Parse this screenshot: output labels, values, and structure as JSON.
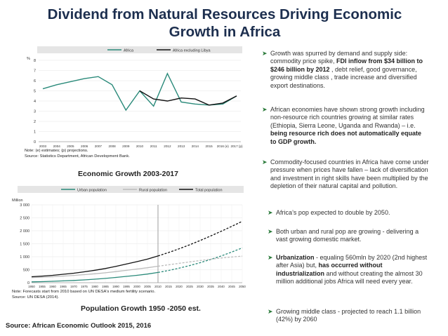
{
  "title": {
    "line1": "Dividend from Natural Resources Driving Economic",
    "line2": "Growth in Africa"
  },
  "chart_data": [
    {
      "type": "line",
      "title": "Economic Growth 2003-2017",
      "ylabel": "%",
      "ylim": [
        0,
        8
      ],
      "yticks": [
        "0",
        "1",
        "2",
        "3",
        "4",
        "5",
        "6",
        "7",
        "8"
      ],
      "categories": [
        "2003",
        "2004",
        "2005",
        "2006",
        "2007",
        "2008",
        "2009",
        "2010",
        "2011",
        "2012",
        "2013",
        "2014",
        "2015",
        "2016 (e)",
        "2017 (p)"
      ],
      "series": [
        {
          "name": "Africa",
          "values": [
            5.2,
            5.6,
            5.9,
            6.2,
            6.4,
            5.6,
            3.1,
            5.0,
            3.5,
            6.7,
            3.9,
            3.7,
            3.6,
            3.7,
            4.5
          ],
          "color": "#2a8a7a"
        },
        {
          "name": "Africa excluding Libya",
          "values": [
            null,
            null,
            null,
            null,
            null,
            null,
            null,
            5.0,
            4.2,
            4.0,
            4.3,
            4.2,
            3.6,
            3.8,
            4.5
          ],
          "color": "#111111"
        }
      ],
      "notes": [
        "Note: (e) estimates; (p) projections.",
        "Source: Statistics Department, African Development Bank."
      ]
    },
    {
      "type": "line",
      "title": "Population Growth 1950 -2050 est.",
      "ylabel": "Million",
      "ylim": [
        0,
        3000
      ],
      "yticks": [
        "0",
        "500",
        "1 000",
        "1 500",
        "2 000",
        "2 500",
        "3 000"
      ],
      "categories": [
        "1950",
        "1955",
        "1960",
        "1965",
        "1970",
        "1975",
        "1980",
        "1985",
        "1990",
        "1995",
        "2000",
        "2005",
        "2010",
        "2015",
        "2020",
        "2025",
        "2030",
        "2035",
        "2040",
        "2045",
        "2050"
      ],
      "series": [
        {
          "name": "Urban population",
          "values": [
            33,
            41,
            53,
            69,
            86,
            107,
            134,
            166,
            203,
            243,
            285,
            332,
            395,
            471,
            560,
            660,
            770,
            895,
            1030,
            1180,
            1340
          ],
          "color": "#2a8a7a",
          "style": "solid"
        },
        {
          "name": "Rural population",
          "values": [
            196,
            214,
            230,
            255,
            280,
            312,
            344,
            381,
            427,
            475,
            526,
            577,
            635,
            690,
            745,
            800,
            855,
            905,
            950,
            990,
            1025
          ],
          "color": "#bbbbbb",
          "style": "solid"
        },
        {
          "name": "Total population",
          "values": [
            229,
            255,
            283,
            324,
            366,
            419,
            478,
            547,
            630,
            718,
            811,
            909,
            1030,
            1161,
            1305,
            1460,
            1625,
            1800,
            1980,
            2170,
            2365
          ],
          "color": "#111111",
          "style": "dashed-after-2010"
        }
      ],
      "divider_at": "2010",
      "notes": [
        "Note: Forecasts start from 2010 based on UN DESA's medium fertility scenario.",
        "Source: UN DESA (2014)."
      ]
    }
  ],
  "captions": {
    "growth": "Economic Growth 2003-2017",
    "population": "Population Growth 1950 -2050 est."
  },
  "bullets": {
    "b1": {
      "pre": "Growth was spurred by demand and supply side: commodity price spike, ",
      "bold": "FDI inflow from $34 billion to $246 billion by 2012",
      "post": " , debt relief, good governance, growing middle class , trade increase and diversified export destinations."
    },
    "b2": {
      "pre": "African economies have shown strong growth including non-resource rich countries growing at similar rates (Ethiopia, Sierra Leone, Uganda and Rwanda) – i.e. ",
      "bold": "being resource rich does not automatically equate to GDP growth.",
      "post": ""
    },
    "b3": {
      "pre": "Commodity-focused countries in Africa have come under pressure when prices have fallen – lack of diversification and investment in right skills have been multiplied by the depletion of their natural capital and pollution.",
      "bold": "",
      "post": ""
    },
    "b4": {
      "pre": "Africa’s  pop expected to double by 2050.",
      "bold": "",
      "post": ""
    },
    "b5": {
      "pre": "Both urban and rural pop are growing - delivering a vast growing domestic market.",
      "bold": "",
      "post": ""
    },
    "b6": {
      "pre": "",
      "bold": "Urbanization",
      "post": " - equaling 560mln by 2020 (2nd highest after Asia) but, ",
      "bold2": "has occurred without industrialization",
      "post2": " and without creating the almost 30 million additional jobs Africa will need every year."
    },
    "b7": {
      "pre": "Growing middle class - projected to reach 1.1 billion (42%) by 2060",
      "bold": "",
      "post": ""
    }
  },
  "source": "Source: African Economic Outlook 2015, 2016"
}
